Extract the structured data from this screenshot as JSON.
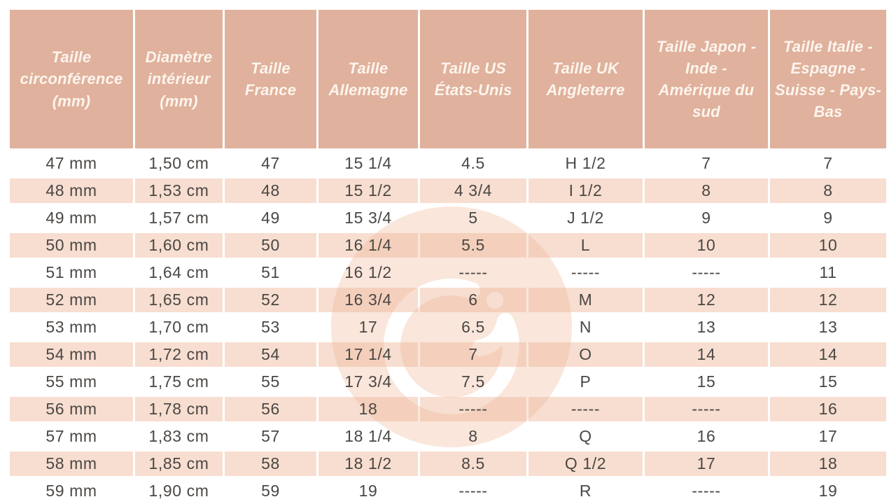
{
  "chart_data": {
    "type": "table",
    "title": "",
    "columns": [
      "Taille circonférence (mm)",
      "Diamètre intérieur (mm)",
      "Taille France",
      "Taille Allemagne",
      "Taille US États-Unis",
      "Taille UK Angleterre",
      "Taille Japon - Inde - Amérique du sud",
      "Taille Italie - Espagne - Suisse - Pays-Bas"
    ],
    "rows": [
      [
        "47 mm",
        "1,50 cm",
        "47",
        "15 1/4",
        "4.5",
        "H 1/2",
        "7",
        "7"
      ],
      [
        "48 mm",
        "1,53 cm",
        "48",
        "15 1/2",
        "4 3/4",
        "I 1/2",
        "8",
        "8"
      ],
      [
        "49 mm",
        "1,57 cm",
        "49",
        "15 3/4",
        "5",
        "J 1/2",
        "9",
        "9"
      ],
      [
        "50 mm",
        "1,60 cm",
        "50",
        "16 1/4",
        "5.5",
        "L",
        "10",
        "10"
      ],
      [
        "51 mm",
        "1,64 cm",
        "51",
        "16 1/2",
        "-----",
        "-----",
        "-----",
        "11"
      ],
      [
        "52 mm",
        "1,65 cm",
        "52",
        "16 3/4",
        "6",
        "M",
        "12",
        "12"
      ],
      [
        "53 mm",
        "1,70 cm",
        "53",
        "17",
        "6.5",
        "N",
        "13",
        "13"
      ],
      [
        "54 mm",
        "1,72 cm",
        "54",
        "17 1/4",
        "7",
        "O",
        "14",
        "14"
      ],
      [
        "55 mm",
        "1,75 cm",
        "55",
        "17 3/4",
        "7.5",
        "P",
        "15",
        "15"
      ],
      [
        "56 mm",
        "1,78 cm",
        "56",
        "18",
        "-----",
        "-----",
        "-----",
        "16"
      ],
      [
        "57 mm",
        "1,83 cm",
        "57",
        "18 1/4",
        "8",
        "Q",
        "16",
        "17"
      ],
      [
        "58 mm",
        "1,85 cm",
        "58",
        "18 1/2",
        "8.5",
        "Q 1/2",
        "17",
        "18"
      ],
      [
        "59 mm",
        "1,90 cm",
        "59",
        "19",
        "-----",
        "R",
        "-----",
        "19"
      ]
    ]
  },
  "table": {
    "header_lines": [
      "Taille\ncirconférence\n(mm)",
      "Diamètre\nintérieur\n(mm)",
      "Taille\nFrance",
      "Taille\nAllemagne",
      "Taille US\nÉtats-Unis",
      "Taille UK\nAngleterre",
      "Taille Japon -\nInde -\nAmérique du\nsud",
      "Taille Italie -\nEspagne -\nSuisse - Pays-\nBas"
    ]
  },
  "colors": {
    "header_bg": "#e0b19c",
    "header_text": "#fcf5ee",
    "row_alt_bg": "#f7ded0",
    "row_bg": "#ffffff",
    "body_text": "#4b4744",
    "watermark_disc": "#fae6db",
    "watermark_glyph": "#ffffff"
  },
  "watermark": {
    "icon": "g-monogram"
  }
}
